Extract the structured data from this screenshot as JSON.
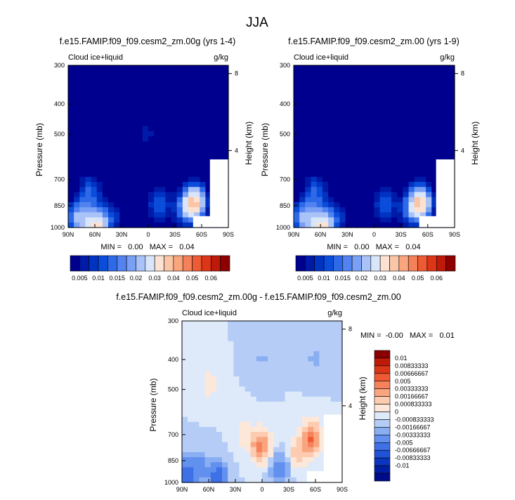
{
  "figure_title": "JJA",
  "colors": {
    "main_scale": [
      "#00008f",
      "#001aa8",
      "#0033c2",
      "#0a4ddb",
      "#2e6ae8",
      "#5283f0",
      "#7aa0f5",
      "#a9c2f7",
      "#d9e6fa",
      "#fbe2d2",
      "#fbc5a7",
      "#f9a57e",
      "#f5815a",
      "#ee5a34",
      "#dc3517",
      "#bd1a09",
      "#8e0000"
    ],
    "diff_scale_high_to_low": [
      "#8b0000",
      "#bd1a08",
      "#d93618",
      "#ee5a33",
      "#f5825b",
      "#f9a680",
      "#fccbb0",
      "#fde7d8",
      "#deeafa",
      "#b5cdf6",
      "#8aaef2",
      "#6290ee",
      "#3e70e6",
      "#2051d6",
      "#0b35be",
      "#001ea3",
      "#000a8a"
    ]
  },
  "chart_data": [
    {
      "type": "heatmap",
      "title": "f.e15.FAMIP.f09_f09.cesm2_zm.00g (yrs 1-4)",
      "left_string": "Cloud ice+liquid",
      "right_string": "g/kg",
      "ylabel": "Pressure (mb)",
      "ylabel_right": "Height (km)",
      "x_ticks": [
        "90N",
        "60N",
        "30N",
        "0",
        "30S",
        "60S",
        "90S"
      ],
      "x_range": [
        90,
        -90
      ],
      "y_ticks": [
        "300",
        "400",
        "500",
        "700",
        "850",
        "1000"
      ],
      "y_range": [
        300,
        1000
      ],
      "y_scale": "log",
      "right_ticks": [
        "8",
        "4"
      ],
      "stats": "MIN =   0.00   MAX =   0.04",
      "colorbar_labels": [
        "0.005",
        "0.01",
        "0.015",
        "0.02",
        "0.03",
        "0.04",
        "0.05",
        "0.06"
      ],
      "features": [
        {
          "lat": 65,
          "p": 760,
          "value": 0.012
        },
        {
          "lat": 78,
          "p": 930,
          "value": 0.02
        },
        {
          "lat": 58,
          "p": 990,
          "value": 0.03
        },
        {
          "lat": 40,
          "p": 920,
          "value": 0.008
        },
        {
          "lat": 2,
          "p": 500,
          "value": 0.006
        },
        {
          "lat": -12,
          "p": 840,
          "value": 0.012
        },
        {
          "lat": -52,
          "p": 830,
          "value": 0.035
        },
        {
          "lat": -40,
          "p": 880,
          "value": 0.01
        }
      ]
    },
    {
      "type": "heatmap",
      "title": "f.e15.FAMIP.f09_f09.cesm2_zm.00 (yrs 1-9)",
      "left_string": "Cloud ice+liquid",
      "right_string": "g/kg",
      "ylabel": "Pressure (mb)",
      "ylabel_right": "Height (km)",
      "x_ticks": [
        "90N",
        "60N",
        "30N",
        "0",
        "30S",
        "60S",
        "90S"
      ],
      "x_range": [
        90,
        -90
      ],
      "y_ticks": [
        "300",
        "400",
        "500",
        "700",
        "850",
        "1000"
      ],
      "y_range": [
        300,
        1000
      ],
      "y_scale": "log",
      "right_ticks": [
        "8",
        "4"
      ],
      "stats": "MIN =   0.00   MAX =   0.04",
      "colorbar_labels": [
        "0.005",
        "0.01",
        "0.015",
        "0.02",
        "0.03",
        "0.04",
        "0.05",
        "0.06"
      ],
      "features": [
        {
          "lat": 65,
          "p": 760,
          "value": 0.012
        },
        {
          "lat": 78,
          "p": 930,
          "value": 0.02
        },
        {
          "lat": 58,
          "p": 990,
          "value": 0.03
        },
        {
          "lat": 40,
          "p": 920,
          "value": 0.008
        },
        {
          "lat": -12,
          "p": 840,
          "value": 0.012
        },
        {
          "lat": -52,
          "p": 830,
          "value": 0.034
        },
        {
          "lat": -40,
          "p": 880,
          "value": 0.01
        }
      ]
    },
    {
      "type": "heatmap",
      "title": "f.e15.FAMIP.f09_f09.cesm2_zm.00g - f.e15.FAMIP.f09_f09.cesm2_zm.00",
      "left_string": "Cloud ice+liquid",
      "right_string": "g/kg",
      "ylabel": "Pressure (mb)",
      "ylabel_right": "Height (km)",
      "x_ticks": [
        "90N",
        "60N",
        "30N",
        "0",
        "30S",
        "60S",
        "90S"
      ],
      "x_range": [
        90,
        -90
      ],
      "y_ticks": [
        "300",
        "400",
        "500",
        "700",
        "850",
        "1000"
      ],
      "y_range": [
        300,
        1000
      ],
      "y_scale": "log",
      "right_ticks": [
        "8",
        "4"
      ],
      "stats": "MIN =  -0.00   MAX =   0.01",
      "colorbar_labels": [
        "0.01",
        "0.00833333",
        "0.00666667",
        "0.005",
        "0.00333333",
        "0.00166667",
        "0.000833333",
        "0",
        "-0.000833333",
        "-0.00166667",
        "-0.00333333",
        "-0.005",
        "-0.00666667",
        "-0.00833333",
        "-0.01"
      ],
      "features": [
        {
          "lat": 2,
          "p": 760,
          "value": 0.005
        },
        {
          "lat": -55,
          "p": 720,
          "value": 0.006
        },
        {
          "lat": -40,
          "p": 800,
          "value": 0.002
        },
        {
          "lat": 20,
          "p": 700,
          "value": 0.001
        },
        {
          "lat": 60,
          "p": 480,
          "value": 0.0008
        },
        {
          "lat": 85,
          "p": 940,
          "value": -0.004
        },
        {
          "lat": 70,
          "p": 900,
          "value": -0.002
        },
        {
          "lat": 50,
          "p": 960,
          "value": -0.004
        },
        {
          "lat": -20,
          "p": 900,
          "value": -0.002
        },
        {
          "lat": 0,
          "p": 400,
          "value": -0.0005
        },
        {
          "lat": -60,
          "p": 400,
          "value": -0.0006
        }
      ]
    }
  ]
}
